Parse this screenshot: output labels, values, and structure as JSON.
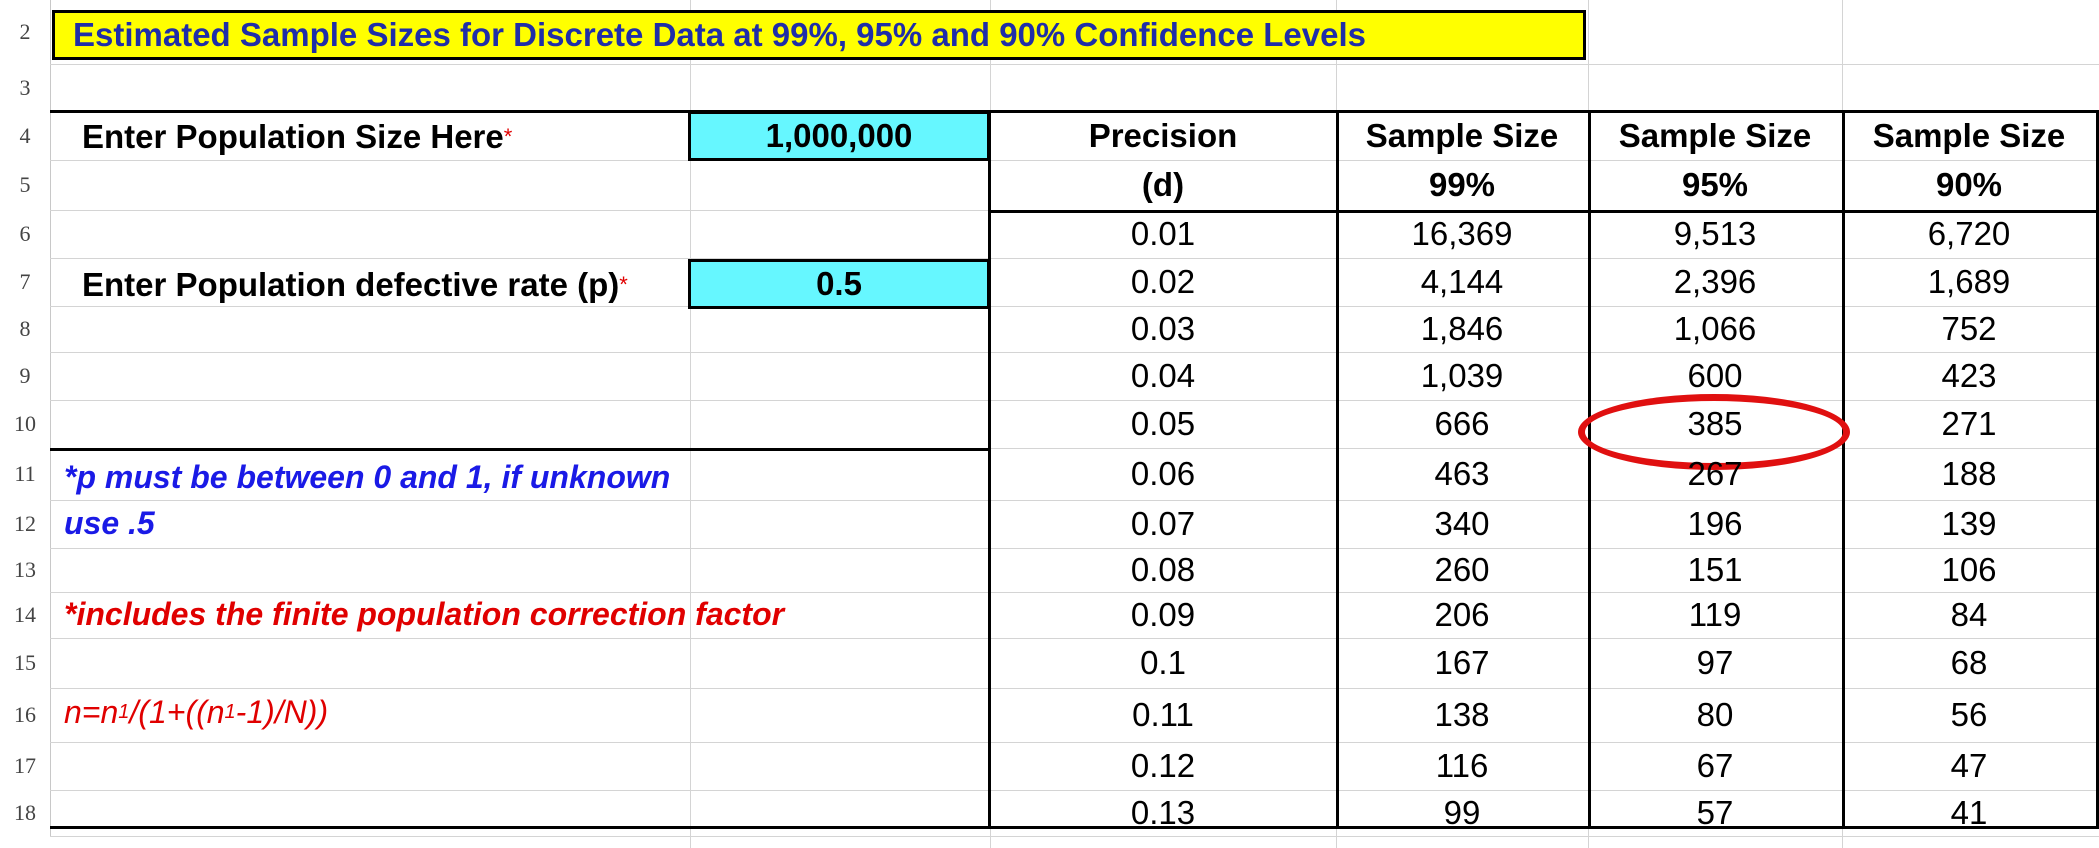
{
  "row_numbers": [
    "2",
    "3",
    "4",
    "5",
    "6",
    "7",
    "8",
    "9",
    "10",
    "11",
    "12",
    "13",
    "14",
    "15",
    "16",
    "17",
    "18"
  ],
  "title": "Estimated Sample Sizes for Discrete Data at 99%, 95% and 90% Confidence Levels",
  "inputs": {
    "population_label": "Enter Population Size  Here",
    "population_value": "1,000,000",
    "defect_label": "Enter Population defective rate (p)",
    "defect_value": "0.5",
    "asterisk": "*"
  },
  "notes": {
    "p_note_line1": "*p must be between 0 and 1, if unknown",
    "p_note_line2": "use .5",
    "fpc_note": "*includes the finite population correction factor",
    "formula_a": "n=n",
    "formula_sub1": "1",
    "formula_b": "/(1+((n",
    "formula_sub2": "1",
    "formula_c": "-1)/N))"
  },
  "table": {
    "headers_line1": [
      "Precision",
      "Sample Size",
      "Sample Size",
      "Sample Size"
    ],
    "headers_line2": [
      "(d)",
      "99%",
      "95%",
      "90%"
    ],
    "rows": [
      [
        "0.01",
        "16,369",
        "9,513",
        "6,720"
      ],
      [
        "0.02",
        "4,144",
        "2,396",
        "1,689"
      ],
      [
        "0.03",
        "1,846",
        "1,066",
        "752"
      ],
      [
        "0.04",
        "1,039",
        "600",
        "423"
      ],
      [
        "0.05",
        "666",
        "385",
        "271"
      ],
      [
        "0.06",
        "463",
        "267",
        "188"
      ],
      [
        "0.07",
        "340",
        "196",
        "139"
      ],
      [
        "0.08",
        "260",
        "151",
        "106"
      ],
      [
        "0.09",
        "206",
        "119",
        "84"
      ],
      [
        "0.1",
        "167",
        "97",
        "68"
      ],
      [
        "0.11",
        "138",
        "80",
        "56"
      ],
      [
        "0.12",
        "116",
        "67",
        "47"
      ],
      [
        "0.13",
        "99",
        "57",
        "41"
      ]
    ],
    "highlighted_value": "385"
  },
  "colors": {
    "title_bg": "#ffff00",
    "title_text": "#1f2ea8",
    "input_bg": "#66f7ff",
    "note_blue": "#1a1ae6",
    "note_red": "#e00000",
    "highlight_circle": "#e01010"
  }
}
